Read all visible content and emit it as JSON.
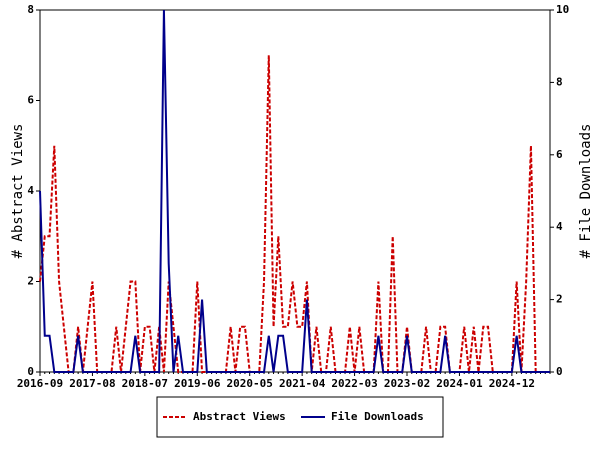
{
  "chart_data": {
    "type": "line",
    "ylabel": "# Abstract Views",
    "y2label": "# File Downloads",
    "categories": [
      "2016-09",
      null,
      null,
      null,
      null,
      null,
      null,
      null,
      null,
      null,
      null,
      "2017-08",
      null,
      null,
      null,
      null,
      null,
      null,
      null,
      null,
      null,
      null,
      "2018-07",
      null,
      null,
      null,
      null,
      null,
      null,
      null,
      null,
      null,
      null,
      "2019-06",
      null,
      null,
      null,
      null,
      null,
      null,
      null,
      null,
      null,
      null,
      "2020-05",
      null,
      null,
      null,
      null,
      null,
      null,
      null,
      null,
      null,
      null,
      "2021-04",
      null,
      null,
      null,
      null,
      null,
      null,
      null,
      null,
      null,
      null,
      "2022-03",
      null,
      null,
      null,
      null,
      null,
      null,
      null,
      null,
      null,
      null,
      "2023-02",
      null,
      null,
      null,
      null,
      null,
      null,
      null,
      null,
      null,
      null,
      "2024-01",
      null,
      null,
      null,
      null,
      null,
      null,
      null,
      null,
      null,
      null,
      "2024-12",
      null,
      null,
      null,
      null,
      null,
      null,
      null,
      null
    ],
    "series": [
      {
        "name": "Abstract Views",
        "color": "#cc0000",
        "dashed": true,
        "axis": "y",
        "values": [
          2,
          3,
          3,
          5,
          2,
          1,
          0,
          0,
          1,
          0,
          1,
          2,
          0,
          0,
          0,
          0,
          1,
          0,
          1,
          2,
          2,
          0,
          1,
          1,
          0,
          1,
          0,
          2,
          1,
          0,
          0,
          0,
          0,
          2,
          0,
          0,
          0,
          0,
          0,
          0,
          1,
          0,
          1,
          1,
          0,
          0,
          0,
          2,
          7,
          1,
          3,
          1,
          1,
          2,
          1,
          1,
          2,
          0,
          1,
          0,
          0,
          1,
          0,
          0,
          0,
          1,
          0,
          1,
          0,
          0,
          0,
          2,
          0,
          0,
          3,
          0,
          0,
          1,
          0,
          0,
          0,
          1,
          0,
          0,
          1,
          1,
          0,
          0,
          0,
          1,
          0,
          1,
          0,
          1,
          1,
          0,
          0,
          0,
          0,
          0,
          2,
          0,
          2,
          5,
          0,
          0,
          0,
          0
        ]
      },
      {
        "name": "File Downloads",
        "color": "#00008b",
        "dashed": false,
        "axis": "y2",
        "values": [
          5,
          1,
          1,
          0,
          0,
          0,
          0,
          0,
          1,
          0,
          0,
          0,
          0,
          0,
          0,
          0,
          0,
          0,
          0,
          0,
          1,
          0,
          0,
          0,
          0,
          0,
          10,
          3,
          0,
          1,
          0,
          0,
          0,
          0,
          2,
          0,
          0,
          0,
          0,
          0,
          0,
          0,
          0,
          0,
          0,
          0,
          0,
          0,
          1,
          0,
          1,
          1,
          0,
          0,
          0,
          0,
          2,
          0,
          0,
          0,
          0,
          0,
          0,
          0,
          0,
          0,
          0,
          0,
          0,
          0,
          0,
          1,
          0,
          0,
          0,
          0,
          0,
          1,
          0,
          0,
          0,
          0,
          0,
          0,
          0,
          1,
          0,
          0,
          0,
          0,
          0,
          0,
          0,
          0,
          0,
          0,
          0,
          0,
          0,
          0,
          1,
          0,
          0,
          0,
          0,
          0,
          0,
          0
        ]
      }
    ],
    "ylim": [
      0,
      8
    ],
    "yticks": [
      0,
      2,
      4,
      6,
      8
    ],
    "y2lim": [
      0,
      10
    ],
    "y2ticks": [
      0,
      2,
      4,
      6,
      8,
      10
    ],
    "legend": "bottom"
  }
}
